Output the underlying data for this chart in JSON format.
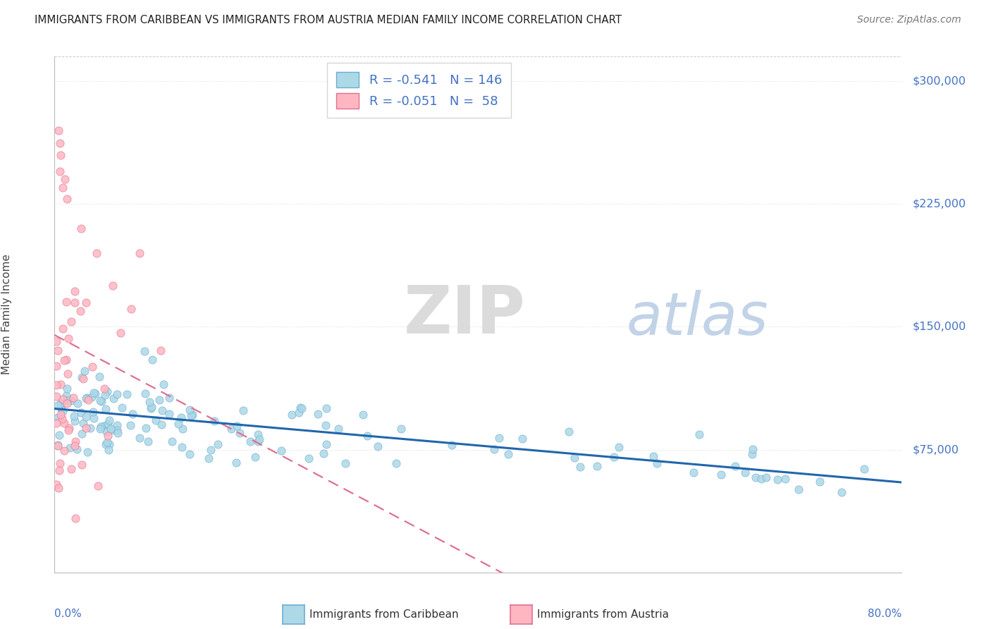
{
  "title": "IMMIGRANTS FROM CARIBBEAN VS IMMIGRANTS FROM AUSTRIA MEDIAN FAMILY INCOME CORRELATION CHART",
  "source": "Source: ZipAtlas.com",
  "ylabel": "Median Family Income",
  "xlim": [
    0,
    80
  ],
  "ylim": [
    0,
    315000
  ],
  "ytick_vals": [
    75000,
    150000,
    225000,
    300000
  ],
  "ytick_labels": [
    "$75,000",
    "$150,000",
    "$225,000",
    "$300,000"
  ],
  "legend_R1": "-0.541",
  "legend_N1": "146",
  "legend_R2": "-0.051",
  "legend_N2": "58",
  "watermark_ZIP": "ZIP",
  "watermark_atlas": "atlas",
  "color_caribbean": "#ADD8E6",
  "color_caribbean_edge": "#6baed6",
  "color_caribbean_line": "#2166ac",
  "color_austria": "#FFB6C1",
  "color_austria_edge": "#e07090",
  "color_austria_line": "#e07090",
  "color_legend_text": "#4472C4",
  "color_axis_label": "#4472C4"
}
